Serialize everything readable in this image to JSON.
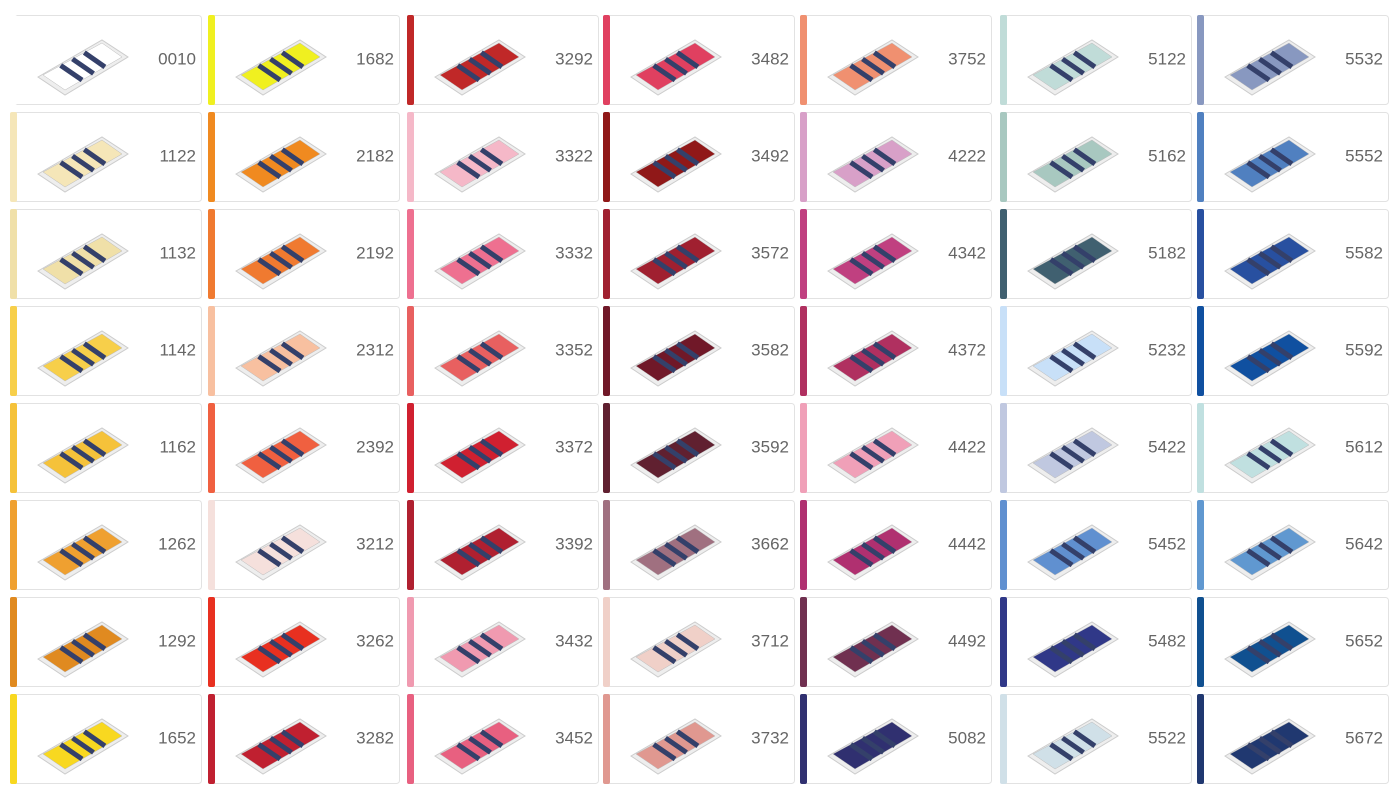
{
  "columns": [
    {
      "items": [
        {
          "code": "0010",
          "color": "#ffffff"
        },
        {
          "code": "1122",
          "color": "#f5e6b8"
        },
        {
          "code": "1132",
          "color": "#f0e0a8"
        },
        {
          "code": "1142",
          "color": "#f7cf4a"
        },
        {
          "code": "1162",
          "color": "#f5c23a"
        },
        {
          "code": "1262",
          "color": "#efa030"
        },
        {
          "code": "1292",
          "color": "#e08a20"
        },
        {
          "code": "1652",
          "color": "#f8d820"
        }
      ]
    },
    {
      "items": [
        {
          "code": "1682",
          "color": "#f0f020"
        },
        {
          "code": "2182",
          "color": "#f08a20"
        },
        {
          "code": "2192",
          "color": "#f07a30"
        },
        {
          "code": "2312",
          "color": "#f8c0a0"
        },
        {
          "code": "2392",
          "color": "#f06040"
        },
        {
          "code": "3212",
          "color": "#f5e0dc"
        },
        {
          "code": "3262",
          "color": "#e83020"
        },
        {
          "code": "3282",
          "color": "#c02030"
        }
      ]
    },
    {
      "items": [
        {
          "code": "3292",
          "color": "#c02828"
        },
        {
          "code": "3322",
          "color": "#f5b8c8"
        },
        {
          "code": "3332",
          "color": "#ee7090"
        },
        {
          "code": "3352",
          "color": "#e86060"
        },
        {
          "code": "3372",
          "color": "#d02030"
        },
        {
          "code": "3392",
          "color": "#b02030"
        },
        {
          "code": "3432",
          "color": "#f09ab0"
        },
        {
          "code": "3452",
          "color": "#e86080"
        }
      ]
    },
    {
      "items": [
        {
          "code": "3482",
          "color": "#e04060"
        },
        {
          "code": "3492",
          "color": "#901818"
        },
        {
          "code": "3572",
          "color": "#a02030"
        },
        {
          "code": "3582",
          "color": "#701828"
        },
        {
          "code": "3592",
          "color": "#602030"
        },
        {
          "code": "3662",
          "color": "#a07080"
        },
        {
          "code": "3712",
          "color": "#f0d0c8"
        },
        {
          "code": "3732",
          "color": "#e09890"
        }
      ]
    },
    {
      "items": [
        {
          "code": "3752",
          "color": "#f09070"
        },
        {
          "code": "4222",
          "color": "#d8a0c8"
        },
        {
          "code": "4342",
          "color": "#c04080"
        },
        {
          "code": "4372",
          "color": "#b03060"
        },
        {
          "code": "4422",
          "color": "#f0a0b8"
        },
        {
          "code": "4442",
          "color": "#b03070"
        },
        {
          "code": "4492",
          "color": "#703050"
        },
        {
          "code": "5082",
          "color": "#303070"
        }
      ]
    },
    {
      "items": [
        {
          "code": "5122",
          "color": "#c0dcd8"
        },
        {
          "code": "5162",
          "color": "#a8c8c0"
        },
        {
          "code": "5182",
          "color": "#406070"
        },
        {
          "code": "5232",
          "color": "#c8e0f8"
        },
        {
          "code": "5422",
          "color": "#c0c8e0"
        },
        {
          "code": "5452",
          "color": "#6090d0"
        },
        {
          "code": "5482",
          "color": "#303888"
        },
        {
          "code": "5522",
          "color": "#d0e0e8"
        }
      ]
    },
    {
      "items": [
        {
          "code": "5532",
          "color": "#8898c0"
        },
        {
          "code": "5552",
          "color": "#5080c0"
        },
        {
          "code": "5582",
          "color": "#2850a0"
        },
        {
          "code": "5592",
          "color": "#1050a0"
        },
        {
          "code": "5612",
          "color": "#c0e0e0"
        },
        {
          "code": "5642",
          "color": "#6098d0"
        },
        {
          "code": "5652",
          "color": "#105090"
        },
        {
          "code": "5672",
          "color": "#203870"
        }
      ]
    }
  ]
}
